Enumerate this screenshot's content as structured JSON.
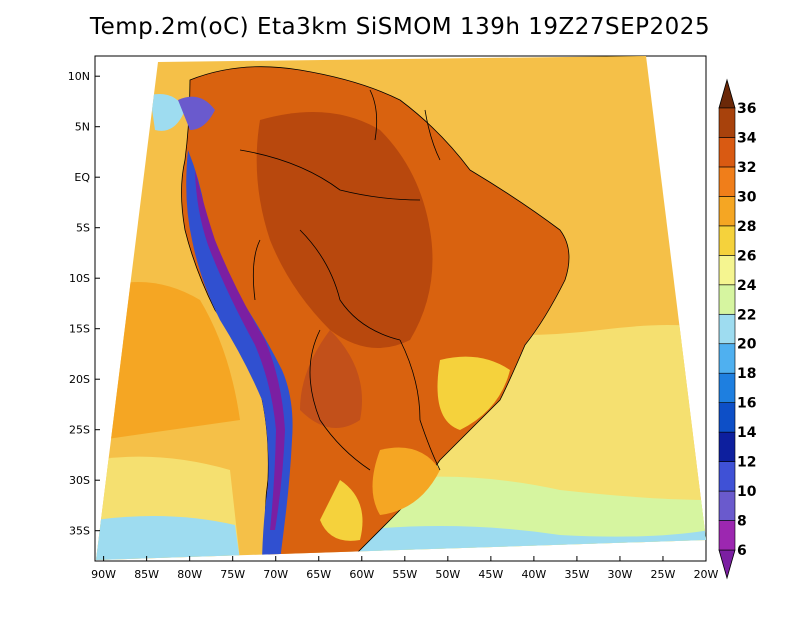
{
  "title": "Temp.2m(oC) Eta3km SiSMOM 139h 19Z27SEP2025",
  "map": {
    "lat_range": [
      -38,
      12
    ],
    "lon_range": [
      -91,
      -20
    ],
    "lat_ticks": [
      "10N",
      "5N",
      "EQ",
      "5S",
      "10S",
      "15S",
      "20S",
      "25S",
      "30S",
      "35S"
    ],
    "lon_ticks": [
      "90W",
      "85W",
      "80W",
      "75W",
      "70W",
      "65W",
      "60W",
      "55W",
      "50W",
      "45W",
      "40W",
      "35W",
      "30W",
      "25W",
      "20W"
    ]
  },
  "colorbar": {
    "levels": [
      "6",
      "8",
      "10",
      "12",
      "14",
      "16",
      "18",
      "20",
      "22",
      "24",
      "26",
      "28",
      "30",
      "32",
      "34",
      "36"
    ],
    "colors": [
      "#7b1fa2",
      "#9c27b0",
      "#6a5acd",
      "#3f51d6",
      "#0d1f9e",
      "#0d4fc7",
      "#1e7fe0",
      "#4fb0f0",
      "#9edcf0",
      "#d6f5a0",
      "#f5f590",
      "#f5d23c",
      "#f5a623",
      "#f07e1a",
      "#d95a12",
      "#a8420c",
      "#6b2808"
    ],
    "units": "oC"
  },
  "legend_colors": {
    "ocean_warm": "#f5c048",
    "ocean_cool": "#f5e070",
    "land_hot": "#d9620f",
    "land_very_hot": "#b8480d",
    "andes_cold": "#3050d0",
    "border": "#000000"
  }
}
